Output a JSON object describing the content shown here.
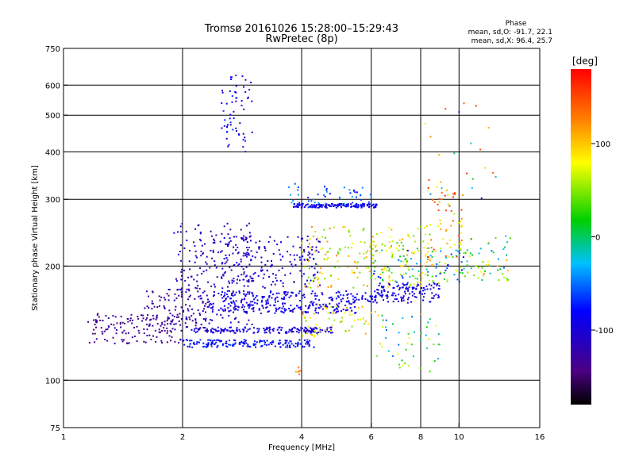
{
  "title": {
    "line1": "Tromsø 20161026 15:28:00–15:29:43",
    "line2": "RwPretec (8p)"
  },
  "phase_stats": {
    "heading": "Phase",
    "line_o": "mean, sd,O: -91.7, 22.1",
    "line_x": "mean, sd,X:  96.4, 25.7"
  },
  "chart_data": {
    "type": "scatter",
    "xlabel": "Frequency [MHz]",
    "ylabel": "Stationary phase Virtual Height [km]",
    "x_scale": "log",
    "y_scale": "log",
    "xlim": [
      1,
      16
    ],
    "ylim": [
      75,
      750
    ],
    "x_ticks": [
      1,
      2,
      4,
      6,
      8,
      10,
      16
    ],
    "x_tick_labels": [
      "1",
      "2",
      "4",
      "6",
      "8",
      "10",
      "16"
    ],
    "y_ticks": [
      75,
      100,
      200,
      300,
      400,
      500,
      600,
      750
    ],
    "y_tick_labels": [
      "75",
      "100",
      "200",
      "300",
      "400",
      "500",
      "600",
      "750"
    ],
    "grid": true,
    "colorbar": {
      "label": "[deg]",
      "range": [
        -180,
        180
      ],
      "ticks": [
        100,
        0,
        -100
      ],
      "tick_labels": [
        "100",
        "0",
        "-100"
      ]
    },
    "clusters": [
      {
        "f": [
          1.15,
          2.0
        ],
        "h": [
          125,
          150
        ],
        "phase": [
          -150,
          -120
        ],
        "n": 140
      },
      {
        "f": [
          1.6,
          2.3
        ],
        "h": [
          135,
          175
        ],
        "phase": [
          -150,
          -110
        ],
        "n": 90
      },
      {
        "f": [
          1.9,
          3.0
        ],
        "h": [
          140,
          260
        ],
        "phase": [
          -135,
          -95
        ],
        "n": 220
      },
      {
        "f": [
          2.0,
          4.3
        ],
        "h": [
          122,
          128
        ],
        "phase": [
          -100,
          -60
        ],
        "n": 170
      },
      {
        "f": [
          2.1,
          4.8
        ],
        "h": [
          133,
          138
        ],
        "phase": [
          -120,
          -80
        ],
        "n": 170
      },
      {
        "f": [
          2.3,
          5.5
        ],
        "h": [
          150,
          160
        ],
        "phase": [
          -115,
          -75
        ],
        "n": 160
      },
      {
        "f": [
          2.5,
          6.5
        ],
        "h": [
          160,
          172
        ],
        "phase": [
          -110,
          -70
        ],
        "n": 170
      },
      {
        "f": [
          2.5,
          4.5
        ],
        "h": [
          175,
          240
        ],
        "phase": [
          -125,
          -85
        ],
        "n": 180
      },
      {
        "f": [
          3.8,
          6.2
        ],
        "h": [
          285,
          292
        ],
        "phase": [
          -105,
          -70
        ],
        "n": 150
      },
      {
        "f": [
          3.7,
          6.0
        ],
        "h": [
          292,
          330
        ],
        "phase": [
          -80,
          -30
        ],
        "n": 45
      },
      {
        "f": [
          2.5,
          3.0
        ],
        "h": [
          400,
          650
        ],
        "phase": [
          -120,
          -60
        ],
        "n": 60
      },
      {
        "f": [
          4.0,
          8.5
        ],
        "h": [
          175,
          255
        ],
        "phase": [
          30,
          130
        ],
        "n": 190
      },
      {
        "f": [
          4.0,
          6.2
        ],
        "h": [
          130,
          160
        ],
        "phase": [
          40,
          120
        ],
        "n": 60
      },
      {
        "f": [
          6.0,
          9.0
        ],
        "h": [
          160,
          180
        ],
        "phase": [
          -115,
          -80
        ],
        "n": 120
      },
      {
        "f": [
          6.0,
          10.5
        ],
        "h": [
          180,
          225
        ],
        "phase": [
          -90,
          110
        ],
        "n": 110
      },
      {
        "f": [
          6.2,
          9.0
        ],
        "h": [
          105,
          150
        ],
        "phase": [
          -60,
          100
        ],
        "n": 50
      },
      {
        "f": [
          8.3,
          10.2
        ],
        "h": [
          200,
          340
        ],
        "phase": [
          60,
          170
        ],
        "n": 60
      },
      {
        "f": [
          10.0,
          13.5
        ],
        "h": [
          180,
          240
        ],
        "phase": [
          -60,
          120
        ],
        "n": 60
      },
      {
        "f": [
          8.2,
          12.5
        ],
        "h": [
          300,
          540
        ],
        "phase": [
          -100,
          170
        ],
        "n": 22
      },
      {
        "f": [
          3.8,
          4.0
        ],
        "h": [
          103,
          108
        ],
        "phase": [
          100,
          140
        ],
        "n": 6
      }
    ]
  }
}
